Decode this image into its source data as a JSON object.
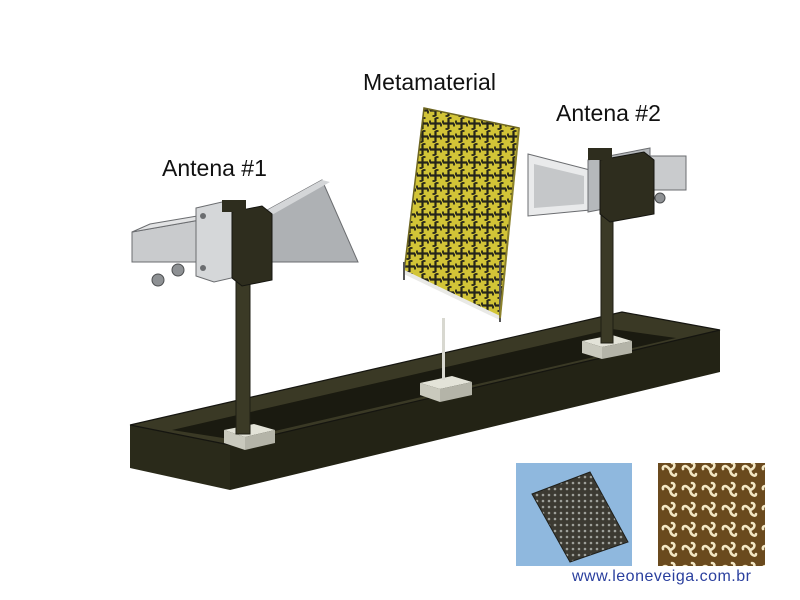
{
  "labels": {
    "metamaterial": "Metamaterial",
    "antenna_1": "Antena #1",
    "antenna_2": "Antena #2"
  },
  "credit": "www.leoneveiga.com.br",
  "colors": {
    "bench": "#2f2e1c",
    "bench_top": "#3a3925",
    "post": "#3b3a26",
    "metal": "#c9cbcd",
    "metal_dark": "#8e9194",
    "metamaterial": "#d2c437",
    "cell": "#25251a",
    "credit": "#2a3f9e"
  },
  "icons": [
    "horn-antenna-icon",
    "metamaterial-panel-icon",
    "optical-bench-icon"
  ]
}
